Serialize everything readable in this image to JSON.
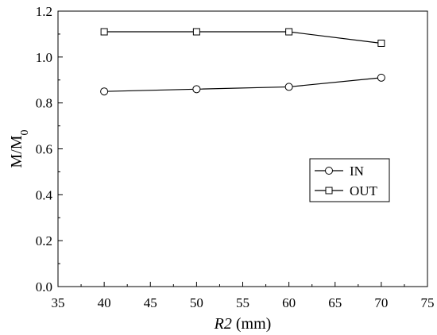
{
  "chart_data": {
    "type": "line",
    "x": [
      40,
      50,
      60,
      70
    ],
    "xlim": [
      35,
      75
    ],
    "ylim": [
      0.0,
      1.2
    ],
    "xticks": [
      35,
      40,
      45,
      50,
      55,
      60,
      65,
      70,
      75
    ],
    "yticks": [
      0.0,
      0.2,
      0.4,
      0.6,
      0.8,
      1.0,
      1.2
    ],
    "xtick_labels": [
      "35",
      "40",
      "45",
      "50",
      "55",
      "60",
      "65",
      "70",
      "75"
    ],
    "ytick_labels": [
      "0.0",
      "0.2",
      "0.4",
      "0.6",
      "0.8",
      "1.0",
      "1.2"
    ],
    "xlabel": {
      "italic": "R2",
      "rest": " (mm)"
    },
    "ylabel": {
      "main": "M/M",
      "sub": "0"
    },
    "grid": false,
    "legend_position": "center-right",
    "series": [
      {
        "name": "IN",
        "marker": "circle",
        "values": [
          0.85,
          0.86,
          0.87,
          0.91
        ]
      },
      {
        "name": "OUT",
        "marker": "square",
        "values": [
          1.11,
          1.11,
          1.11,
          1.06
        ]
      }
    ],
    "colors": {
      "line": "#000000",
      "marker_fill": "#ffffff"
    }
  }
}
